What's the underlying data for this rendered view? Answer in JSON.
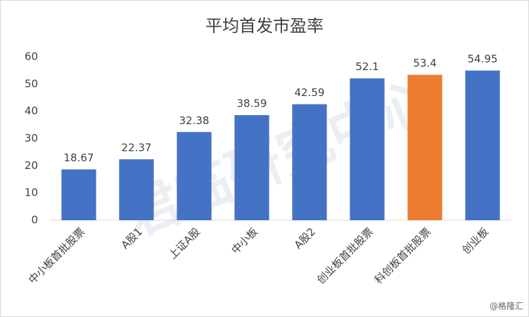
{
  "chart_data": {
    "type": "bar",
    "title": "平均首发市盈率",
    "categories": [
      "中小板首批股票",
      "A股1",
      "上证A股",
      "中小板",
      "A股2",
      "创业板首批股票",
      "科创板首批股票",
      "创业板"
    ],
    "values": [
      18.67,
      22.37,
      32.38,
      38.59,
      42.59,
      52.1,
      53.4,
      54.95
    ],
    "colors": [
      "#4472c4",
      "#4472c4",
      "#4472c4",
      "#4472c4",
      "#4472c4",
      "#4472c4",
      "#ed7d31",
      "#4472c4"
    ],
    "ylim": [
      0,
      60
    ],
    "yticks": [
      0,
      10,
      20,
      30,
      40,
      50,
      60
    ],
    "grid": false,
    "watermark": "君临研究中心",
    "source": "@格隆汇"
  }
}
